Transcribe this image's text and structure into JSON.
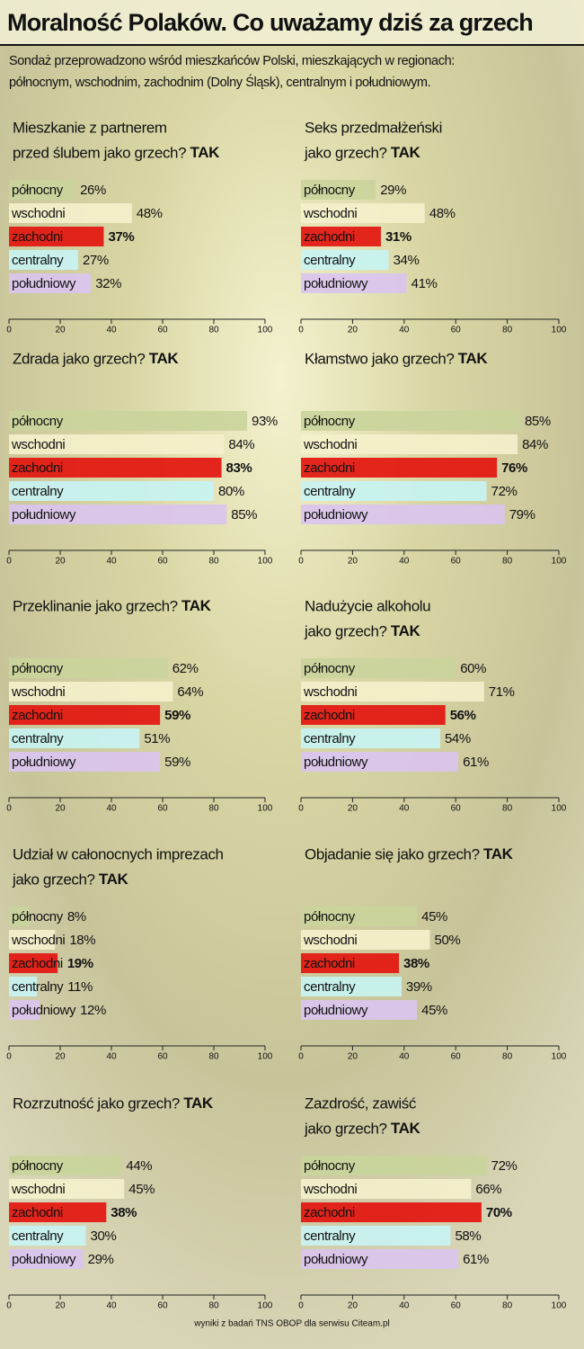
{
  "title": "Moralność Polaków. Co uważamy dziś za grzech",
  "subtitle": [
    "Sondaż przeprowadzono wśród mieszkańców Polski, mieszkających w regionach:",
    "północnym, wschodnim, zachodnim (Dolny Śląsk), centralnym i południowym."
  ],
  "source": "wyniki z badań TNS OBOP dla serwisu Citeam.pl",
  "chart_data": [
    {
      "type": "bar",
      "orientation": "horizontal",
      "title": [
        "Mieszkanie z partnerem",
        "przed ślubem jako grzech?"
      ],
      "title_emphasis": "TAK",
      "categories": [
        "północny",
        "wschodni",
        "zachodni",
        "centralny",
        "południowy"
      ],
      "values": [
        26,
        48,
        37,
        27,
        32
      ],
      "value_labels": [
        "26%",
        "48%",
        "37%",
        "27%",
        "32%"
      ],
      "colors": [
        "#c9d49b",
        "#f3f0cb",
        "#e3150f",
        "#c8f3f2",
        "#dac4ee"
      ],
      "highlight_index": 2,
      "xlim": [
        0,
        100
      ],
      "xticks": [
        0,
        20,
        40,
        60,
        80,
        100
      ]
    },
    {
      "type": "bar",
      "orientation": "horizontal",
      "title": [
        "Seks przedmałżeński",
        "jako grzech?"
      ],
      "title_emphasis": "TAK",
      "categories": [
        "północny",
        "wschodni",
        "zachodni",
        "centralny",
        "południowy"
      ],
      "values": [
        29,
        48,
        31,
        34,
        41
      ],
      "value_labels": [
        "29%",
        "48%",
        "31%",
        "34%",
        "41%"
      ],
      "colors": [
        "#c9d49b",
        "#f3f0cb",
        "#e3150f",
        "#c8f3f2",
        "#dac4ee"
      ],
      "highlight_index": 2,
      "xlim": [
        0,
        100
      ],
      "xticks": [
        0,
        20,
        40,
        60,
        80,
        100
      ]
    },
    {
      "type": "bar",
      "orientation": "horizontal",
      "title": [
        "Zdrada jako grzech?"
      ],
      "title_emphasis": "TAK",
      "categories": [
        "północny",
        "wschodni",
        "zachodni",
        "centralny",
        "południowy"
      ],
      "values": [
        93,
        84,
        83,
        80,
        85
      ],
      "value_labels": [
        "93%",
        "84%",
        "83%",
        "80%",
        "85%"
      ],
      "colors": [
        "#c9d49b",
        "#f3f0cb",
        "#e3150f",
        "#c8f3f2",
        "#dac4ee"
      ],
      "highlight_index": 2,
      "xlim": [
        0,
        100
      ],
      "xticks": [
        0,
        20,
        40,
        60,
        80,
        100
      ]
    },
    {
      "type": "bar",
      "orientation": "horizontal",
      "title": [
        "Kłamstwo jako grzech?"
      ],
      "title_emphasis": "TAK",
      "categories": [
        "północny",
        "wschodni",
        "zachodni",
        "centralny",
        "południowy"
      ],
      "values": [
        85,
        84,
        76,
        72,
        79
      ],
      "value_labels": [
        "85%",
        "84%",
        "76%",
        "72%",
        "79%"
      ],
      "colors": [
        "#c9d49b",
        "#f3f0cb",
        "#e3150f",
        "#c8f3f2",
        "#dac4ee"
      ],
      "highlight_index": 2,
      "xlim": [
        0,
        100
      ],
      "xticks": [
        0,
        20,
        40,
        60,
        80,
        100
      ]
    },
    {
      "type": "bar",
      "orientation": "horizontal",
      "title": [
        "Przeklinanie jako grzech?"
      ],
      "title_emphasis": "TAK",
      "categories": [
        "północny",
        "wschodni",
        "zachodni",
        "centralny",
        "południowy"
      ],
      "values": [
        62,
        64,
        59,
        51,
        59
      ],
      "value_labels": [
        "62%",
        "64%",
        "59%",
        "51%",
        "59%"
      ],
      "colors": [
        "#c9d49b",
        "#f3f0cb",
        "#e3150f",
        "#c8f3f2",
        "#dac4ee"
      ],
      "highlight_index": 2,
      "xlim": [
        0,
        100
      ],
      "xticks": [
        0,
        20,
        40,
        60,
        80,
        100
      ]
    },
    {
      "type": "bar",
      "orientation": "horizontal",
      "title": [
        "Nadużycie alkoholu",
        "jako grzech?"
      ],
      "title_emphasis": "TAK",
      "categories": [
        "północny",
        "wschodni",
        "zachodni",
        "centralny",
        "południowy"
      ],
      "values": [
        60,
        71,
        56,
        54,
        61
      ],
      "value_labels": [
        "60%",
        "71%",
        "56%",
        "54%",
        "61%"
      ],
      "colors": [
        "#c9d49b",
        "#f3f0cb",
        "#e3150f",
        "#c8f3f2",
        "#dac4ee"
      ],
      "highlight_index": 2,
      "xlim": [
        0,
        100
      ],
      "xticks": [
        0,
        20,
        40,
        60,
        80,
        100
      ]
    },
    {
      "type": "bar",
      "orientation": "horizontal",
      "title": [
        "Udział w całonocnych imprezach",
        "jako grzech?"
      ],
      "title_emphasis": "TAK",
      "categories": [
        "północny",
        "wschodni",
        "zachodni",
        "centralny",
        "południowy"
      ],
      "values": [
        8,
        18,
        19,
        11,
        12
      ],
      "value_labels": [
        "8%",
        "18%",
        "19%",
        "11%",
        "12%"
      ],
      "colors": [
        "#c9d49b",
        "#f3f0cb",
        "#e3150f",
        "#c8f3f2",
        "#dac4ee"
      ],
      "highlight_index": 2,
      "xlim": [
        0,
        100
      ],
      "xticks": [
        0,
        20,
        40,
        60,
        80,
        100
      ]
    },
    {
      "type": "bar",
      "orientation": "horizontal",
      "title": [
        "Objadanie się jako grzech?"
      ],
      "title_emphasis": "TAK",
      "categories": [
        "północny",
        "wschodni",
        "zachodni",
        "centralny",
        "południowy"
      ],
      "values": [
        45,
        50,
        38,
        39,
        45
      ],
      "value_labels": [
        "45%",
        "50%",
        "38%",
        "39%",
        "45%"
      ],
      "colors": [
        "#c9d49b",
        "#f3f0cb",
        "#e3150f",
        "#c8f3f2",
        "#dac4ee"
      ],
      "highlight_index": 2,
      "xlim": [
        0,
        100
      ],
      "xticks": [
        0,
        20,
        40,
        60,
        80,
        100
      ]
    },
    {
      "type": "bar",
      "orientation": "horizontal",
      "title": [
        "Rozrzutność jako grzech?"
      ],
      "title_emphasis": "TAK",
      "categories": [
        "północny",
        "wschodni",
        "zachodni",
        "centralny",
        "południowy"
      ],
      "values": [
        44,
        45,
        38,
        30,
        29
      ],
      "value_labels": [
        "44%",
        "45%",
        "38%",
        "30%",
        "29%"
      ],
      "colors": [
        "#c9d49b",
        "#f3f0cb",
        "#e3150f",
        "#c8f3f2",
        "#dac4ee"
      ],
      "highlight_index": 2,
      "xlim": [
        0,
        100
      ],
      "xticks": [
        0,
        20,
        40,
        60,
        80,
        100
      ]
    },
    {
      "type": "bar",
      "orientation": "horizontal",
      "title": [
        "Zazdrość, zawiść",
        "jako grzech?"
      ],
      "title_emphasis": "TAK",
      "categories": [
        "północny",
        "wschodni",
        "zachodni",
        "centralny",
        "południowy"
      ],
      "values": [
        72,
        66,
        70,
        58,
        61
      ],
      "value_labels": [
        "72%",
        "66%",
        "70%",
        "58%",
        "61%"
      ],
      "colors": [
        "#c9d49b",
        "#f3f0cb",
        "#e3150f",
        "#c8f3f2",
        "#dac4ee"
      ],
      "highlight_index": 2,
      "xlim": [
        0,
        100
      ],
      "xticks": [
        0,
        20,
        40,
        60,
        80,
        100
      ]
    }
  ]
}
